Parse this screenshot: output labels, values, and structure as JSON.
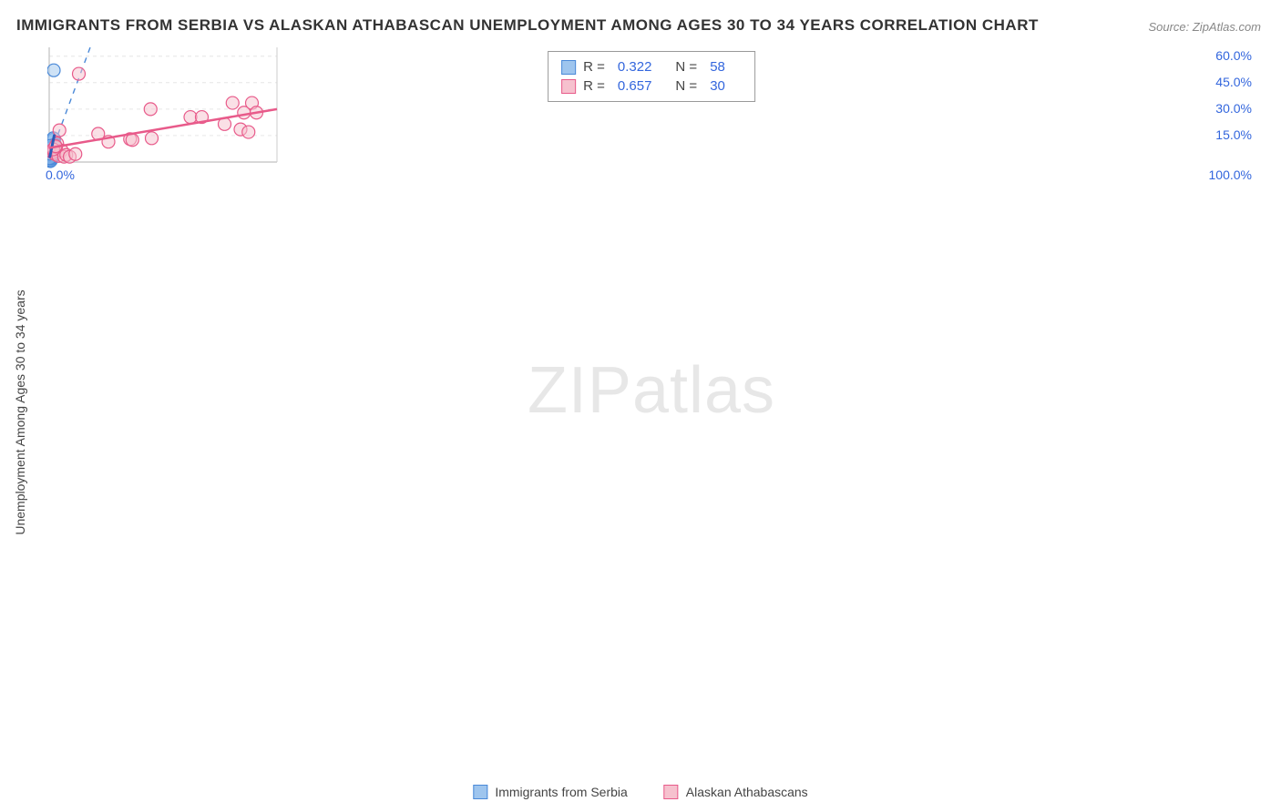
{
  "title": "IMMIGRANTS FROM SERBIA VS ALASKAN ATHABASCAN UNEMPLOYMENT AMONG AGES 30 TO 34 YEARS CORRELATION CHART",
  "source": "Source: ZipAtlas.com",
  "watermark_bold": "ZIP",
  "watermark_thin": "atlas",
  "y_axis_label": "Unemployment Among Ages 30 to 34 years",
  "chart": {
    "type": "scatter",
    "background_color": "#ffffff",
    "grid_color": "#e6e6e6",
    "axis_color": "#cccccc",
    "xlim": [
      0,
      100
    ],
    "ylim": [
      0,
      65
    ],
    "x_ticks": [
      {
        "v": 0,
        "l": "0.0%"
      },
      {
        "v": 100,
        "l": "100.0%"
      }
    ],
    "y_ticks": [
      {
        "v": 15,
        "l": "15.0%"
      },
      {
        "v": 30,
        "l": "30.0%"
      },
      {
        "v": 45,
        "l": "45.0%"
      },
      {
        "v": 60,
        "l": "60.0%"
      }
    ],
    "marker_radius": 7,
    "marker_stroke_width": 1.2,
    "series": [
      {
        "name": "Immigrants from Serbia",
        "fill": "#9ec5ee",
        "stroke": "#4a89d8",
        "fill_opacity": 0.5,
        "R": "0.322",
        "N": "58",
        "trend": {
          "type": "dashed",
          "color": "#4a89d8",
          "width": 1.4,
          "x1": 0.5,
          "y1": 4,
          "x2": 18,
          "y2": 65
        },
        "trend_solid": {
          "color": "#2a5bb8",
          "width": 3,
          "x1": 0.3,
          "y1": 3,
          "x2": 2.2,
          "y2": 15
        },
        "points": [
          [
            0.3,
            1.5
          ],
          [
            0.4,
            2.0
          ],
          [
            0.5,
            1.2
          ],
          [
            0.6,
            2.5
          ],
          [
            0.7,
            3.0
          ],
          [
            0.8,
            1.8
          ],
          [
            0.5,
            3.5
          ],
          [
            0.6,
            4.0
          ],
          [
            0.9,
            2.2
          ],
          [
            1.0,
            3.8
          ],
          [
            0.4,
            4.5
          ],
          [
            0.7,
            5.0
          ],
          [
            0.8,
            5.5
          ],
          [
            0.5,
            6.0
          ],
          [
            0.6,
            6.5
          ],
          [
            1.1,
            4.2
          ],
          [
            1.2,
            5.2
          ],
          [
            0.9,
            7.0
          ],
          [
            1.0,
            7.5
          ],
          [
            0.7,
            8.0
          ],
          [
            1.3,
            6.0
          ],
          [
            1.4,
            4.8
          ],
          [
            0.8,
            8.5
          ],
          [
            1.5,
            7.2
          ],
          [
            1.0,
            9.0
          ],
          [
            1.6,
            8.2
          ],
          [
            1.2,
            9.5
          ],
          [
            1.8,
            10.0
          ],
          [
            1.4,
            10.5
          ],
          [
            1.1,
            11.0
          ],
          [
            2.0,
            11.5
          ],
          [
            1.6,
            12.0
          ],
          [
            1.3,
            12.5
          ],
          [
            2.2,
            13.0
          ],
          [
            1.8,
            13.5
          ],
          [
            1.5,
            2.8
          ],
          [
            0.3,
            3.2
          ],
          [
            0.9,
            4.6
          ],
          [
            1.7,
            6.8
          ],
          [
            2.1,
            9.2
          ],
          [
            0.6,
            1.0
          ],
          [
            0.4,
            0.8
          ],
          [
            0.5,
            0.5
          ],
          [
            0.7,
            1.3
          ],
          [
            0.8,
            0.9
          ],
          [
            1.0,
            2.0
          ],
          [
            1.1,
            2.8
          ],
          [
            1.3,
            3.4
          ],
          [
            1.5,
            4.0
          ],
          [
            1.9,
            5.4
          ],
          [
            2.3,
            8.0
          ],
          [
            2.5,
            9.8
          ],
          [
            0.2,
            2.2
          ],
          [
            0.3,
            4.8
          ],
          [
            0.4,
            6.2
          ],
          [
            0.5,
            7.8
          ],
          [
            0.6,
            9.2
          ],
          [
            2.0,
            52.0
          ]
        ]
      },
      {
        "name": "Alaskan Athabascans",
        "fill": "#f6c1ce",
        "stroke": "#e85a8a",
        "fill_opacity": 0.5,
        "R": "0.657",
        "N": "30",
        "trend": {
          "type": "solid",
          "color": "#e85a8a",
          "width": 2.5,
          "x1": 0,
          "y1": 8,
          "x2": 100,
          "y2": 30
        },
        "points": [
          [
            1.5,
            5.5
          ],
          [
            2.0,
            6.0
          ],
          [
            2.5,
            4.5
          ],
          [
            3.5,
            10.5
          ],
          [
            4.0,
            3.5
          ],
          [
            5.5,
            6.5
          ],
          [
            6.5,
            3.0
          ],
          [
            7.5,
            4.0
          ],
          [
            9.0,
            3.0
          ],
          [
            11.5,
            4.5
          ],
          [
            13.0,
            50.0
          ],
          [
            21.5,
            16.0
          ],
          [
            26.0,
            11.5
          ],
          [
            35.5,
            13.0
          ],
          [
            36.5,
            12.5
          ],
          [
            44.5,
            30.0
          ],
          [
            45.0,
            13.5
          ],
          [
            62.0,
            25.5
          ],
          [
            67.0,
            25.5
          ],
          [
            77.0,
            21.5
          ],
          [
            3.0,
            8.5
          ],
          [
            1.8,
            7.2
          ],
          [
            2.8,
            9.0
          ],
          [
            80.5,
            33.5
          ],
          [
            84.0,
            18.5
          ],
          [
            85.5,
            28.0
          ],
          [
            87.5,
            17.0
          ],
          [
            89.0,
            33.5
          ],
          [
            91.0,
            28.0
          ],
          [
            4.5,
            18.0
          ]
        ]
      }
    ]
  },
  "legend_bottom": [
    {
      "label": "Immigrants from Serbia",
      "fill": "#9ec5ee",
      "stroke": "#4a89d8"
    },
    {
      "label": "Alaskan Athabascans",
      "fill": "#f6c1ce",
      "stroke": "#e85a8a"
    }
  ]
}
